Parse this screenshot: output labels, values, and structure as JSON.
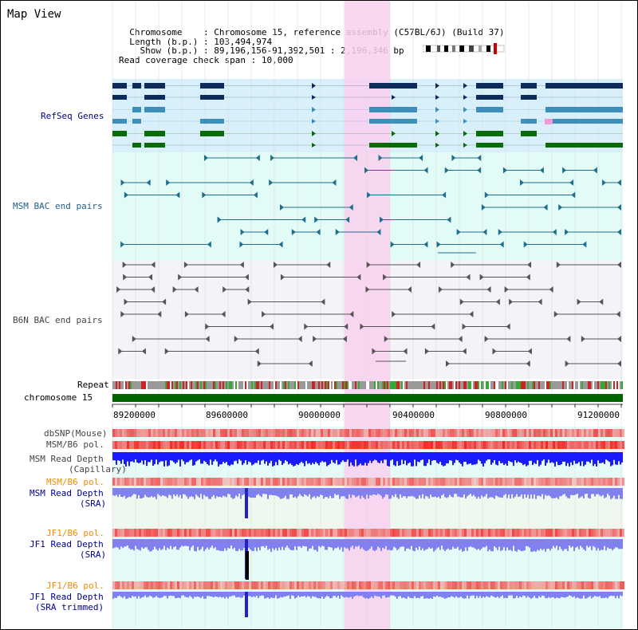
{
  "window": {
    "title": "Map View"
  },
  "info": {
    "chromosome_label": "Chromosome",
    "chromosome_value": "Chromosome 15, reference assembly (C57BL/6J) (Build 37)",
    "length_label": "Length (b.p.)",
    "length_value": "103,494,974",
    "show_label": "Show (b.p.)",
    "show_value": "89,196,156-91,392,501 : 2,196,346 bp",
    "coverage_label": "Read coverage check span",
    "coverage_value": "10,000"
  },
  "tracks": {
    "refseq": "RefSeq Genes",
    "msm_bac": "MSM BAC end pairs",
    "b6n_bac": "B6N BAC end pairs",
    "repeat": "Repeat",
    "chromosome": "chromosome 15",
    "dbsnp": "dbSNP(Mouse)",
    "msm_b6_pol_1": "MSM/B6 pol.",
    "msm_read_depth_cap_1": "MSM Read Depth",
    "msm_read_depth_cap_2": "(Capillary)",
    "msm_b6_pol_2": "MSM/B6 pol.",
    "msm_read_depth_sra_1": "MSM Read Depth",
    "msm_read_depth_sra_2": "(SRA)",
    "jf1_b6_pol_1": "JF1/B6 pol.",
    "jf1_read_depth_sra_1": "JF1 Read Depth",
    "jf1_read_depth_sra_2": "(SRA)",
    "jf1_b6_pol_2": "JF1/B6 pol.",
    "jf1_read_depth_trim_1": "JF1 Read Depth",
    "jf1_read_depth_trim_2": "(SRA trimmed)"
  },
  "axis": {
    "ticks": [
      "89200000",
      "89600000",
      "90000000",
      "90400000",
      "90800000",
      "91200000"
    ]
  },
  "colors": {
    "highlight": "#f9d0ee",
    "refseq_bg": "#d9f0fa",
    "bac_bg": "#e3fbf6",
    "gene_dark": "#0d2c5c",
    "gene_mid": "#3c8fb8",
    "gene_green": "#0a6b0a",
    "bac_teal": "#1e6f8c",
    "bac_gray": "#555555",
    "chromosome_bar": "#006400",
    "depth_blue": "#1a1aff",
    "depth_light": "#8080f0",
    "pol_red": "#e83030"
  }
}
